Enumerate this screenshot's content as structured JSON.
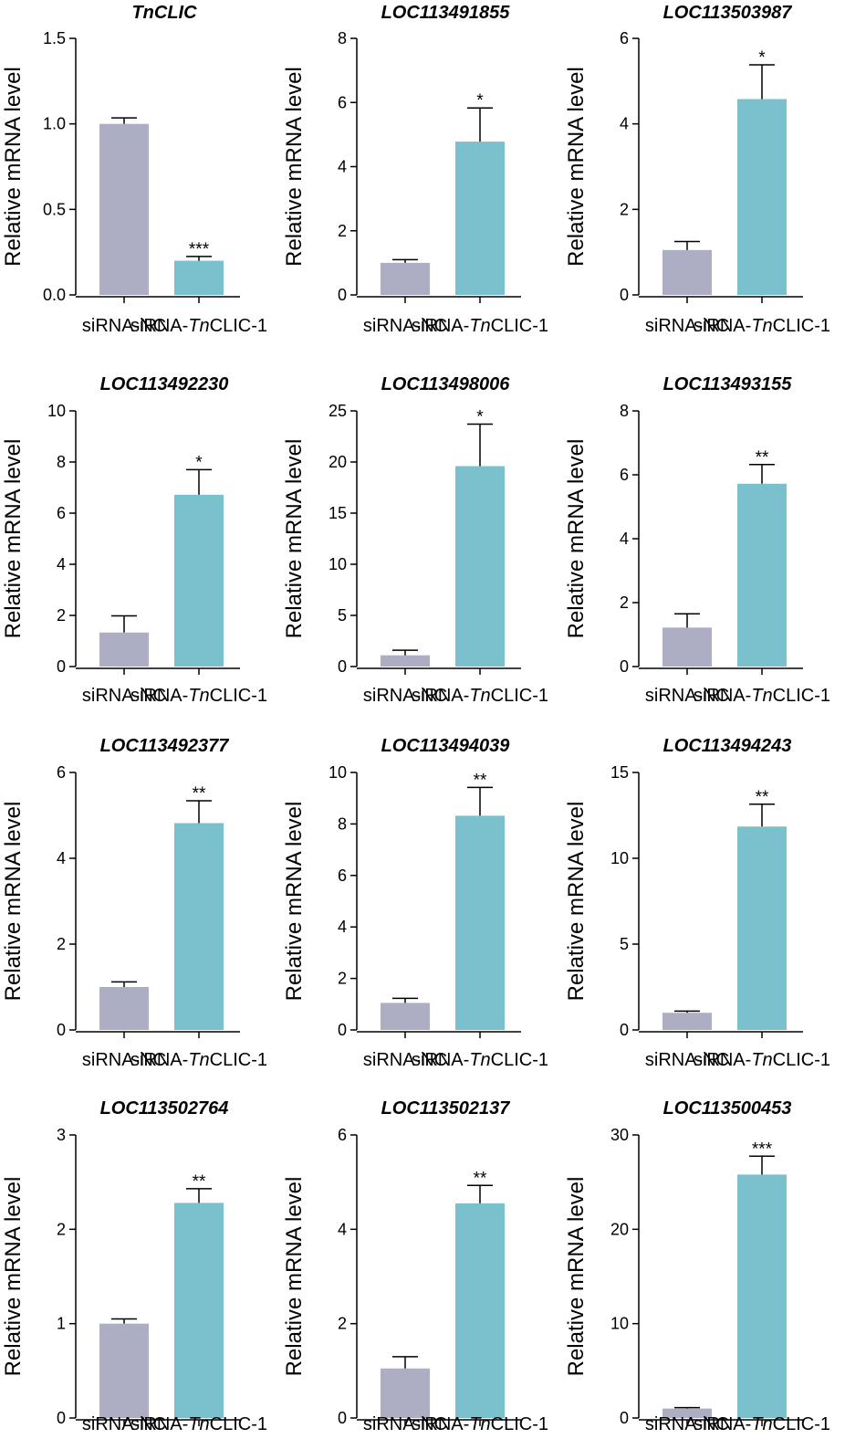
{
  "colors": {
    "control": "#adadc3",
    "treatment": "#7bc1cd",
    "axis": "#000000"
  },
  "chart_data": [
    {
      "type": "bar",
      "title": "TnCLIC",
      "ylabel": "Relative mRNA level",
      "categories": [
        "siRNA-NC",
        "siRNA-TnCLIC-1"
      ],
      "values": [
        1.0,
        0.2
      ],
      "errors": [
        0.035,
        0.025
      ],
      "significance": [
        "",
        "***"
      ],
      "ylim": [
        0,
        1.5
      ],
      "yticks": [
        0.0,
        0.5,
        1.0,
        1.5
      ],
      "tick_labels": [
        "0.0",
        "0.5",
        "1.0",
        "1.5"
      ]
    },
    {
      "type": "bar",
      "title": "LOC113491855",
      "ylabel": "Relative mRNA level",
      "categories": [
        "siRNA-NC",
        "siRNA-TnCLIC-1"
      ],
      "values": [
        1.0,
        4.78
      ],
      "errors": [
        0.1,
        1.05
      ],
      "significance": [
        "",
        "*"
      ],
      "ylim": [
        0,
        8
      ],
      "yticks": [
        0,
        2,
        4,
        6,
        8
      ],
      "tick_labels": [
        "0",
        "2",
        "4",
        "6",
        "8"
      ]
    },
    {
      "type": "bar",
      "title": "LOC113503987",
      "ylabel": "Relative mRNA level",
      "categories": [
        "siRNA-NC",
        "siRNA-TnCLIC-1"
      ],
      "values": [
        1.05,
        4.58
      ],
      "errors": [
        0.2,
        0.8
      ],
      "significance": [
        "",
        "*"
      ],
      "ylim": [
        0,
        6
      ],
      "yticks": [
        0,
        2,
        4,
        6
      ],
      "tick_labels": [
        "0",
        "2",
        "4",
        "6"
      ]
    },
    {
      "type": "bar",
      "title": "LOC113492230",
      "ylabel": "Relative mRNA level",
      "categories": [
        "siRNA-NC",
        "siRNA-TnCLIC-1"
      ],
      "values": [
        1.33,
        6.72
      ],
      "errors": [
        0.65,
        0.98
      ],
      "significance": [
        "",
        "*"
      ],
      "ylim": [
        0,
        10
      ],
      "yticks": [
        0,
        2,
        4,
        6,
        8,
        10
      ],
      "tick_labels": [
        "0",
        "2",
        "4",
        "6",
        "8",
        "10"
      ]
    },
    {
      "type": "bar",
      "title": "LOC113498006",
      "ylabel": "Relative mRNA level",
      "categories": [
        "siRNA-NC",
        "siRNA-TnCLIC-1"
      ],
      "values": [
        1.1,
        19.6
      ],
      "errors": [
        0.5,
        4.1
      ],
      "significance": [
        "",
        "*"
      ],
      "ylim": [
        0,
        25
      ],
      "yticks": [
        0,
        5,
        10,
        15,
        20,
        25
      ],
      "tick_labels": [
        "0",
        "5",
        "10",
        "15",
        "20",
        "25"
      ]
    },
    {
      "type": "bar",
      "title": "LOC113493155",
      "ylabel": "Relative mRNA level",
      "categories": [
        "siRNA-NC",
        "siRNA-TnCLIC-1"
      ],
      "values": [
        1.22,
        5.72
      ],
      "errors": [
        0.43,
        0.6
      ],
      "significance": [
        "",
        "**"
      ],
      "ylim": [
        0,
        8
      ],
      "yticks": [
        0,
        2,
        4,
        6,
        8
      ],
      "tick_labels": [
        "0",
        "2",
        "4",
        "6",
        "8"
      ]
    },
    {
      "type": "bar",
      "title": "LOC113492377",
      "ylabel": "Relative mRNA level",
      "categories": [
        "siRNA-NC",
        "siRNA-TnCLIC-1"
      ],
      "values": [
        1.0,
        4.82
      ],
      "errors": [
        0.12,
        0.52
      ],
      "significance": [
        "",
        "**"
      ],
      "ylim": [
        0,
        6
      ],
      "yticks": [
        0,
        2,
        4,
        6
      ],
      "tick_labels": [
        "0",
        "2",
        "4",
        "6"
      ]
    },
    {
      "type": "bar",
      "title": "LOC113494039",
      "ylabel": "Relative mRNA level",
      "categories": [
        "siRNA-NC",
        "siRNA-TnCLIC-1"
      ],
      "values": [
        1.05,
        8.32
      ],
      "errors": [
        0.18,
        1.1
      ],
      "significance": [
        "",
        "**"
      ],
      "ylim": [
        0,
        10
      ],
      "yticks": [
        0,
        2,
        4,
        6,
        8,
        10
      ],
      "tick_labels": [
        "0",
        "2",
        "4",
        "6",
        "8",
        "10"
      ]
    },
    {
      "type": "bar",
      "title": "LOC113494243",
      "ylabel": "Relative mRNA level",
      "categories": [
        "siRNA-NC",
        "siRNA-TnCLIC-1"
      ],
      "values": [
        1.0,
        11.85
      ],
      "errors": [
        0.1,
        1.3
      ],
      "significance": [
        "",
        "**"
      ],
      "ylim": [
        0,
        15
      ],
      "yticks": [
        0,
        5,
        10,
        15
      ],
      "tick_labels": [
        "0",
        "5",
        "10",
        "15"
      ]
    },
    {
      "type": "bar",
      "title": "LOC113502764",
      "ylabel": "Relative mRNA level",
      "categories": [
        "siRNA-NC",
        "siRNA-TnCLIC-1"
      ],
      "values": [
        1.0,
        2.28
      ],
      "errors": [
        0.05,
        0.15
      ],
      "significance": [
        "",
        "**"
      ],
      "ylim": [
        0,
        3
      ],
      "yticks": [
        0,
        1,
        2,
        3
      ],
      "tick_labels": [
        "0",
        "1",
        "2",
        "3"
      ]
    },
    {
      "type": "bar",
      "title": "LOC113502137",
      "ylabel": "Relative mRNA level",
      "categories": [
        "siRNA-NC",
        "siRNA-TnCLIC-1"
      ],
      "values": [
        1.05,
        4.55
      ],
      "errors": [
        0.25,
        0.38
      ],
      "significance": [
        "",
        "**"
      ],
      "ylim": [
        0,
        6
      ],
      "yticks": [
        0,
        2,
        4,
        6
      ],
      "tick_labels": [
        "0",
        "2",
        "4",
        "6"
      ]
    },
    {
      "type": "bar",
      "title": "LOC113500453",
      "ylabel": "Relative mRNA level",
      "categories": [
        "siRNA-NC",
        "siRNA-TnCLIC-1"
      ],
      "values": [
        1.0,
        25.8
      ],
      "errors": [
        0.1,
        1.95
      ],
      "significance": [
        "",
        "***"
      ],
      "ylim": [
        0,
        30
      ],
      "yticks": [
        0,
        10,
        20,
        30
      ],
      "tick_labels": [
        "0",
        "10",
        "20",
        "30"
      ]
    }
  ]
}
